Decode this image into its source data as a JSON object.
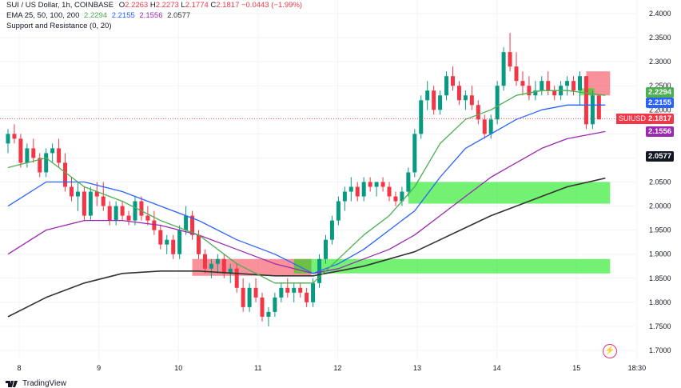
{
  "legend": {
    "title": "SUI / US Dollar, 1h, COINBASE",
    "ohlc": {
      "o_label": "O",
      "o": "2.2263",
      "h_label": "H",
      "h": "2.2273",
      "l_label": "L",
      "l": "2.1774",
      "c_label": "C",
      "c": "2.1817",
      "change": "−0.0443 (−1.99%)"
    },
    "ema_label": "EMA 25, 50, 100, 200",
    "ema_values": [
      "2.2294",
      "2.2155",
      "2.1556",
      "2.0577"
    ],
    "sr_label": "Support and Resistance (0, 20)"
  },
  "brand": "TradingView",
  "colors": {
    "up": "#089981",
    "down": "#f23645",
    "ema25": "#4caf50",
    "ema50": "#2962ff",
    "ema100": "#9c27b0",
    "ema200": "#333333",
    "support": "#00e600",
    "resistance": "#f23645"
  },
  "price_tags": {
    "ema25": "2.2294",
    "ema50": "2.2155",
    "last": "2.1817",
    "symbol": "SUIUSD",
    "ema100": "2.1556",
    "ema200": "2.0577"
  },
  "chart_data": {
    "type": "line",
    "symbol": "SUIUSD",
    "timeframe": "1h",
    "ylim": [
      1.7,
      2.4
    ],
    "yticks": [
      "2.4000",
      "2.3500",
      "2.3000",
      "2.2500",
      "2.2000",
      "2.1500",
      "2.1000",
      "2.0500",
      "2.0000",
      "1.9500",
      "1.9000",
      "1.8500",
      "1.8000",
      "1.7500",
      "1.7000"
    ],
    "xticks": [
      {
        "label": "8",
        "pos": 0.0
      },
      {
        "label": "9",
        "pos": 1.0
      },
      {
        "label": "10",
        "pos": 2.0
      },
      {
        "label": "11",
        "pos": 3.0
      },
      {
        "label": "12",
        "pos": 4.0
      },
      {
        "label": "13",
        "pos": 5.0
      },
      {
        "label": "14",
        "pos": 6.0
      },
      {
        "label": "15",
        "pos": 7.0
      },
      {
        "label": "18:30",
        "pos": 7.76
      }
    ],
    "grid": true,
    "candles": [
      [
        2.13,
        2.16,
        2.11,
        2.15
      ],
      [
        2.15,
        2.17,
        2.13,
        2.14
      ],
      [
        2.14,
        2.15,
        2.08,
        2.09
      ],
      [
        2.09,
        2.13,
        2.08,
        2.12
      ],
      [
        2.12,
        2.14,
        2.09,
        2.1
      ],
      [
        2.1,
        2.11,
        2.06,
        2.07
      ],
      [
        2.07,
        2.12,
        2.06,
        2.11
      ],
      [
        2.11,
        2.13,
        2.09,
        2.12
      ],
      [
        2.12,
        2.14,
        2.08,
        2.09
      ],
      [
        2.09,
        2.11,
        2.03,
        2.04
      ],
      [
        2.04,
        2.06,
        2.01,
        2.02
      ],
      [
        2.02,
        2.05,
        1.99,
        2.03
      ],
      [
        2.03,
        2.04,
        1.97,
        1.98
      ],
      [
        1.98,
        2.04,
        1.97,
        2.03
      ],
      [
        2.03,
        2.05,
        2.0,
        2.02
      ],
      [
        2.02,
        2.05,
        1.99,
        2.0
      ],
      [
        2.0,
        2.01,
        1.96,
        1.97
      ],
      [
        1.97,
        2.01,
        1.96,
        2.0
      ],
      [
        2.0,
        2.01,
        1.97,
        1.98
      ],
      [
        1.98,
        1.99,
        1.96,
        1.97
      ],
      [
        1.97,
        2.02,
        1.96,
        2.01
      ],
      [
        2.01,
        2.02,
        1.97,
        1.98
      ],
      [
        1.98,
        2.0,
        1.96,
        1.97
      ],
      [
        1.97,
        1.99,
        1.94,
        1.95
      ],
      [
        1.95,
        1.96,
        1.91,
        1.92
      ],
      [
        1.92,
        1.94,
        1.9,
        1.93
      ],
      [
        1.93,
        1.94,
        1.89,
        1.9
      ],
      [
        1.9,
        1.96,
        1.89,
        1.95
      ],
      [
        1.95,
        2.0,
        1.94,
        1.98
      ],
      [
        1.98,
        1.99,
        1.93,
        1.94
      ],
      [
        1.94,
        1.95,
        1.89,
        1.9
      ],
      [
        1.9,
        1.91,
        1.86,
        1.87
      ],
      [
        1.87,
        1.89,
        1.85,
        1.88
      ],
      [
        1.88,
        1.9,
        1.86,
        1.89
      ],
      [
        1.89,
        1.9,
        1.85,
        1.86
      ],
      [
        1.86,
        1.88,
        1.84,
        1.87
      ],
      [
        1.87,
        1.88,
        1.82,
        1.83
      ],
      [
        1.83,
        1.85,
        1.78,
        1.79
      ],
      [
        1.79,
        1.84,
        1.78,
        1.83
      ],
      [
        1.83,
        1.85,
        1.8,
        1.81
      ],
      [
        1.81,
        1.82,
        1.76,
        1.77
      ],
      [
        1.77,
        1.79,
        1.75,
        1.78
      ],
      [
        1.78,
        1.82,
        1.77,
        1.81
      ],
      [
        1.81,
        1.84,
        1.8,
        1.83
      ],
      [
        1.83,
        1.85,
        1.81,
        1.82
      ],
      [
        1.82,
        1.84,
        1.8,
        1.83
      ],
      [
        1.83,
        1.84,
        1.81,
        1.82
      ],
      [
        1.82,
        1.83,
        1.79,
        1.8
      ],
      [
        1.8,
        1.85,
        1.79,
        1.84
      ],
      [
        1.84,
        1.9,
        1.83,
        1.89
      ],
      [
        1.89,
        1.94,
        1.88,
        1.93
      ],
      [
        1.93,
        1.98,
        1.92,
        1.97
      ],
      [
        1.97,
        2.02,
        1.96,
        2.01
      ],
      [
        2.01,
        2.04,
        1.99,
        2.03
      ],
      [
        2.03,
        2.06,
        2.01,
        2.04
      ],
      [
        2.04,
        2.05,
        2.01,
        2.02
      ],
      [
        2.02,
        2.06,
        2.01,
        2.05
      ],
      [
        2.05,
        2.06,
        2.03,
        2.04
      ],
      [
        2.04,
        2.05,
        2.02,
        2.05
      ],
      [
        2.05,
        2.06,
        2.03,
        2.04
      ],
      [
        2.04,
        2.05,
        2.01,
        2.02
      ],
      [
        2.02,
        2.03,
        2.0,
        2.01
      ],
      [
        2.01,
        2.04,
        2.0,
        2.03
      ],
      [
        2.03,
        2.08,
        2.02,
        2.07
      ],
      [
        2.07,
        2.16,
        2.06,
        2.15
      ],
      [
        2.15,
        2.23,
        2.14,
        2.22
      ],
      [
        2.22,
        2.26,
        2.2,
        2.24
      ],
      [
        2.24,
        2.25,
        2.19,
        2.2
      ],
      [
        2.2,
        2.24,
        2.19,
        2.23
      ],
      [
        2.23,
        2.28,
        2.22,
        2.27
      ],
      [
        2.27,
        2.29,
        2.24,
        2.25
      ],
      [
        2.25,
        2.26,
        2.21,
        2.22
      ],
      [
        2.22,
        2.24,
        2.2,
        2.23
      ],
      [
        2.23,
        2.25,
        2.2,
        2.21
      ],
      [
        2.21,
        2.22,
        2.17,
        2.18
      ],
      [
        2.18,
        2.19,
        2.14,
        2.15
      ],
      [
        2.15,
        2.19,
        2.14,
        2.18
      ],
      [
        2.18,
        2.26,
        2.17,
        2.25
      ],
      [
        2.25,
        2.33,
        2.24,
        2.32
      ],
      [
        2.32,
        2.36,
        2.28,
        2.29
      ],
      [
        2.29,
        2.32,
        2.25,
        2.26
      ],
      [
        2.26,
        2.28,
        2.23,
        2.25
      ],
      [
        2.25,
        2.27,
        2.22,
        2.23
      ],
      [
        2.23,
        2.26,
        2.22,
        2.24
      ],
      [
        2.24,
        2.27,
        2.23,
        2.26
      ],
      [
        2.26,
        2.28,
        2.23,
        2.24
      ],
      [
        2.24,
        2.25,
        2.22,
        2.23
      ],
      [
        2.23,
        2.26,
        2.22,
        2.25
      ],
      [
        2.25,
        2.27,
        2.23,
        2.26
      ],
      [
        2.26,
        2.27,
        2.23,
        2.24
      ],
      [
        2.24,
        2.28,
        2.21,
        2.27
      ],
      [
        2.27,
        2.27,
        2.16,
        2.17
      ],
      [
        2.17,
        2.24,
        2.16,
        2.23
      ],
      [
        2.23,
        2.23,
        2.18,
        2.18
      ]
    ],
    "ema25": [
      [
        0,
        2.08
      ],
      [
        6,
        2.1
      ],
      [
        12,
        2.04
      ],
      [
        18,
        2.01
      ],
      [
        24,
        1.97
      ],
      [
        30,
        1.94
      ],
      [
        36,
        1.88
      ],
      [
        42,
        1.84
      ],
      [
        48,
        1.84
      ],
      [
        52,
        1.89
      ],
      [
        56,
        1.94
      ],
      [
        60,
        1.98
      ],
      [
        64,
        2.04
      ],
      [
        68,
        2.13
      ],
      [
        72,
        2.18
      ],
      [
        76,
        2.2
      ],
      [
        80,
        2.23
      ],
      [
        84,
        2.24
      ],
      [
        88,
        2.24
      ],
      [
        94,
        2.23
      ]
    ],
    "ema50": [
      [
        0,
        2.0
      ],
      [
        6,
        2.05
      ],
      [
        12,
        2.05
      ],
      [
        18,
        2.03
      ],
      [
        24,
        2.0
      ],
      [
        30,
        1.97
      ],
      [
        36,
        1.93
      ],
      [
        42,
        1.9
      ],
      [
        48,
        1.86
      ],
      [
        52,
        1.88
      ],
      [
        56,
        1.91
      ],
      [
        60,
        1.95
      ],
      [
        64,
        1.99
      ],
      [
        68,
        2.06
      ],
      [
        72,
        2.12
      ],
      [
        76,
        2.15
      ],
      [
        80,
        2.18
      ],
      [
        84,
        2.2
      ],
      [
        88,
        2.21
      ],
      [
        94,
        2.21
      ]
    ],
    "ema100": [
      [
        0,
        1.9
      ],
      [
        6,
        1.95
      ],
      [
        12,
        1.97
      ],
      [
        18,
        1.97
      ],
      [
        24,
        1.96
      ],
      [
        30,
        1.94
      ],
      [
        36,
        1.91
      ],
      [
        42,
        1.88
      ],
      [
        48,
        1.86
      ],
      [
        52,
        1.87
      ],
      [
        56,
        1.89
      ],
      [
        60,
        1.91
      ],
      [
        64,
        1.94
      ],
      [
        68,
        1.98
      ],
      [
        72,
        2.02
      ],
      [
        76,
        2.06
      ],
      [
        80,
        2.09
      ],
      [
        84,
        2.12
      ],
      [
        88,
        2.14
      ],
      [
        94,
        2.155
      ]
    ],
    "ema200": [
      [
        0,
        1.77
      ],
      [
        6,
        1.81
      ],
      [
        12,
        1.84
      ],
      [
        18,
        1.86
      ],
      [
        24,
        1.865
      ],
      [
        30,
        1.865
      ],
      [
        36,
        1.86
      ],
      [
        42,
        1.855
      ],
      [
        48,
        1.855
      ],
      [
        52,
        1.865
      ],
      [
        56,
        1.875
      ],
      [
        60,
        1.89
      ],
      [
        64,
        1.905
      ],
      [
        68,
        1.93
      ],
      [
        72,
        1.955
      ],
      [
        76,
        1.98
      ],
      [
        80,
        2.0
      ],
      [
        84,
        2.02
      ],
      [
        88,
        2.04
      ],
      [
        94,
        2.058
      ]
    ],
    "zones": [
      {
        "kind": "resistance",
        "from": 29,
        "to": 47,
        "top": 1.89,
        "bottom": 1.855
      },
      {
        "kind": "support",
        "from": 45,
        "to": 94,
        "top": 1.89,
        "bottom": 1.86
      },
      {
        "kind": "support",
        "from": 63,
        "to": 94,
        "top": 2.05,
        "bottom": 2.005
      },
      {
        "kind": "resistance",
        "from": 91,
        "to": 94,
        "top": 2.28,
        "bottom": 2.23
      },
      {
        "kind": "support",
        "from": 90,
        "to": 91.5,
        "top": 2.245,
        "bottom": 2.23
      }
    ],
    "last_price": 2.1817
  }
}
